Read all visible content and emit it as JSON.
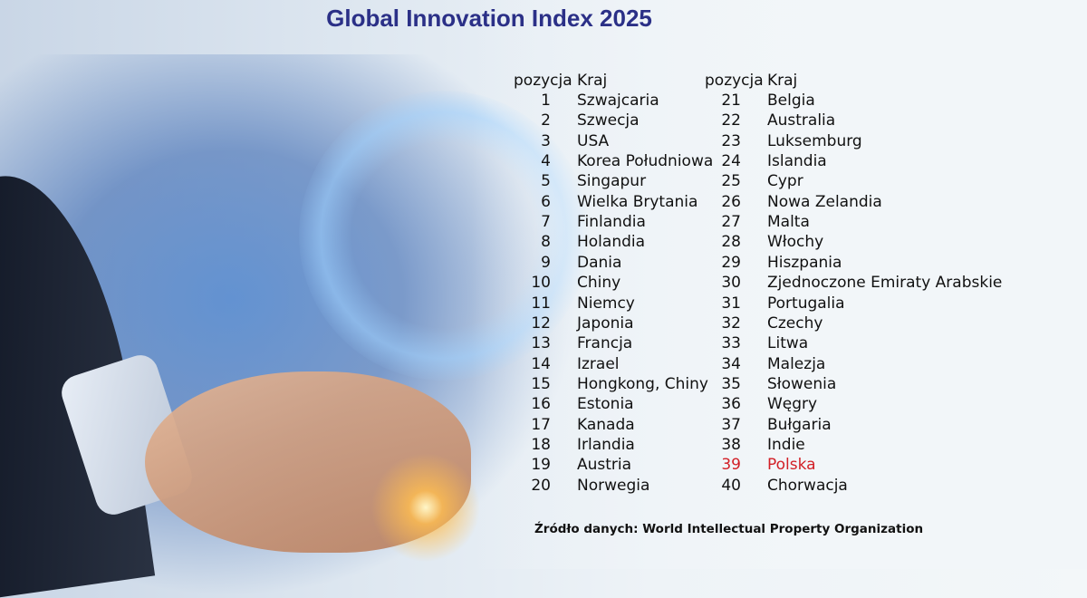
{
  "title": "Global Innovation Index 2025",
  "table": {
    "headers": {
      "position": "pozycja",
      "country": "Kraj"
    },
    "highlight_color": "#d21f26",
    "rows": [
      {
        "pos": "1",
        "country": "Szwajcaria"
      },
      {
        "pos": "2",
        "country": "Szwecja"
      },
      {
        "pos": "3",
        "country": "USA"
      },
      {
        "pos": "4",
        "country": "Korea Południowa"
      },
      {
        "pos": "5",
        "country": "Singapur"
      },
      {
        "pos": "6",
        "country": "Wielka Brytania"
      },
      {
        "pos": "7",
        "country": "Finlandia"
      },
      {
        "pos": "8",
        "country": "Holandia"
      },
      {
        "pos": "9",
        "country": "Dania"
      },
      {
        "pos": "10",
        "country": "Chiny"
      },
      {
        "pos": "11",
        "country": "Niemcy"
      },
      {
        "pos": "12",
        "country": "Japonia"
      },
      {
        "pos": "13",
        "country": "Francja"
      },
      {
        "pos": "14",
        "country": "Izrael"
      },
      {
        "pos": "15",
        "country": "Hongkong, Chiny"
      },
      {
        "pos": "16",
        "country": "Estonia"
      },
      {
        "pos": "17",
        "country": "Kanada"
      },
      {
        "pos": "18",
        "country": "Irlandia"
      },
      {
        "pos": "19",
        "country": "Austria"
      },
      {
        "pos": "20",
        "country": "Norwegia"
      },
      {
        "pos": "21",
        "country": "Belgia"
      },
      {
        "pos": "22",
        "country": "Australia"
      },
      {
        "pos": "23",
        "country": "Luksemburg"
      },
      {
        "pos": "24",
        "country": "Islandia"
      },
      {
        "pos": "25",
        "country": "Cypr"
      },
      {
        "pos": "26",
        "country": "Nowa Zelandia"
      },
      {
        "pos": "27",
        "country": "Malta"
      },
      {
        "pos": "28",
        "country": "Włochy"
      },
      {
        "pos": "29",
        "country": "Hiszpania"
      },
      {
        "pos": "30",
        "country": "Zjednoczone Emiraty Arabskie"
      },
      {
        "pos": "31",
        "country": "Portugalia"
      },
      {
        "pos": "32",
        "country": "Czechy"
      },
      {
        "pos": "33",
        "country": "Litwa"
      },
      {
        "pos": "34",
        "country": "Malezja"
      },
      {
        "pos": "35",
        "country": "Słowenia"
      },
      {
        "pos": "36",
        "country": "Węgry"
      },
      {
        "pos": "37",
        "country": "Bułgaria"
      },
      {
        "pos": "38",
        "country": "Indie"
      },
      {
        "pos": "39",
        "country": "Polska",
        "highlight": true
      },
      {
        "pos": "40",
        "country": "Chorwacja"
      }
    ]
  },
  "source": "Źródło danych: World Intellectual Property Organization"
}
